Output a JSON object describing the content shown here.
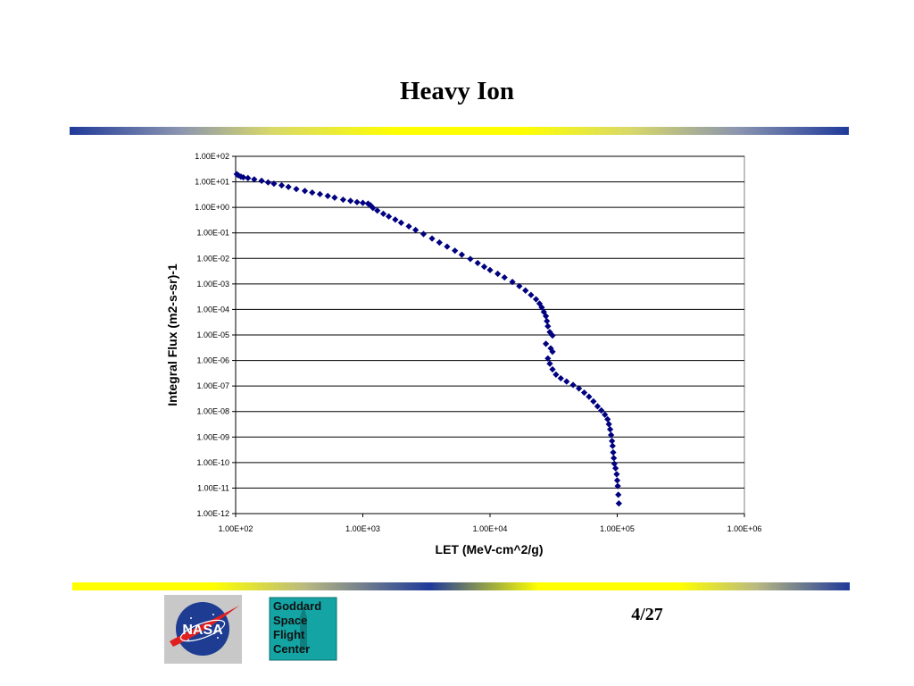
{
  "slide": {
    "title": "Heavy Ion",
    "page_number": "4/27"
  },
  "logos": {
    "nasa_text": "NASA",
    "gsfc_lines": [
      "Goddard",
      "Space",
      "Flight",
      "Center"
    ]
  },
  "colors": {
    "series": "#000080",
    "bar_blue": "#1f3a9a",
    "bar_yellow": "#ffff00",
    "gsfc_bg": "#14a4a4",
    "nasa_blue": "#1d3c92",
    "nasa_red": "#e02020"
  },
  "chart_data": {
    "type": "scatter",
    "title": "",
    "xlabel": "LET (MeV-cm^2/g)",
    "ylabel": "Integral Flux (m2-s-sr)-1",
    "x_scale": "log",
    "y_scale": "log",
    "xlim": [
      100,
      1000000
    ],
    "ylim": [
      1e-12,
      100
    ],
    "grid": "horizontal",
    "legend": "none",
    "marker": "diamond",
    "x_ticks": [
      "1.00E+02",
      "1.00E+03",
      "1.00E+04",
      "1.00E+05",
      "1.00E+06"
    ],
    "y_ticks": [
      "1.00E+02",
      "1.00E+01",
      "1.00E+00",
      "1.00E-01",
      "1.00E-02",
      "1.00E-03",
      "1.00E-04",
      "1.00E-05",
      "1.00E-06",
      "1.00E-07",
      "1.00E-08",
      "1.00E-09",
      "1.00E-10",
      "1.00E-11",
      "1.00E-12"
    ],
    "series": [
      {
        "points": [
          [
            102,
            20
          ],
          [
            105,
            18
          ],
          [
            110,
            16
          ],
          [
            115,
            15
          ],
          [
            125,
            14
          ],
          [
            140,
            12.5
          ],
          [
            160,
            11
          ],
          [
            180,
            9.5
          ],
          [
            200,
            8.5
          ],
          [
            230,
            7.3
          ],
          [
            260,
            6.3
          ],
          [
            300,
            5.2
          ],
          [
            350,
            4.4
          ],
          [
            400,
            3.8
          ],
          [
            460,
            3.3
          ],
          [
            530,
            2.8
          ],
          [
            600,
            2.4
          ],
          [
            700,
            2.0
          ],
          [
            800,
            1.8
          ],
          [
            900,
            1.6
          ],
          [
            1000,
            1.5
          ],
          [
            1100,
            1.4
          ],
          [
            1150,
            1.2
          ],
          [
            1200,
            0.95
          ],
          [
            1300,
            0.75
          ],
          [
            1450,
            0.56
          ],
          [
            1600,
            0.44
          ],
          [
            1800,
            0.33
          ],
          [
            2000,
            0.25
          ],
          [
            2300,
            0.18
          ],
          [
            2600,
            0.13
          ],
          [
            3000,
            0.09
          ],
          [
            3500,
            0.06
          ],
          [
            4000,
            0.042
          ],
          [
            4600,
            0.029
          ],
          [
            5300,
            0.02
          ],
          [
            6000,
            0.014
          ],
          [
            7000,
            0.0095
          ],
          [
            8000,
            0.0066
          ],
          [
            9000,
            0.0047
          ],
          [
            10000,
            0.0035
          ],
          [
            11500,
            0.0025
          ],
          [
            13000,
            0.0018
          ],
          [
            15000,
            0.0012
          ],
          [
            17000,
            0.00082
          ],
          [
            19000,
            0.00055
          ],
          [
            21000,
            0.00037
          ],
          [
            23000,
            0.00025
          ],
          [
            24500,
            0.00017
          ],
          [
            25500,
            0.00012
          ],
          [
            26500,
            8e-05
          ],
          [
            27500,
            5.5e-05
          ],
          [
            28000,
            3.5e-05
          ],
          [
            28500,
            2.2e-05
          ],
          [
            27500,
            4.5e-06
          ],
          [
            28500,
            1.2e-06
          ],
          [
            29500,
            7.5e-07
          ],
          [
            31000,
            4.5e-07
          ],
          [
            30000,
            3e-06
          ],
          [
            31000,
            2.2e-06
          ],
          [
            29500,
            1.3e-05
          ],
          [
            31000,
            9.5e-06
          ],
          [
            33000,
            2.8e-07
          ],
          [
            36000,
            2e-07
          ],
          [
            40000,
            1.5e-07
          ],
          [
            45000,
            1.1e-07
          ],
          [
            50000,
            8e-08
          ],
          [
            55000,
            5.5e-08
          ],
          [
            60000,
            3.8e-08
          ],
          [
            65000,
            2.5e-08
          ],
          [
            70000,
            1.6e-08
          ],
          [
            75000,
            1.1e-08
          ],
          [
            80000,
            7.5e-09
          ],
          [
            84000,
            5e-09
          ],
          [
            86000,
            3.2e-09
          ],
          [
            88000,
            2e-09
          ],
          [
            89500,
            1.2e-09
          ],
          [
            91000,
            7e-10
          ],
          [
            92000,
            4.5e-10
          ],
          [
            93000,
            2.5e-10
          ],
          [
            94000,
            1.5e-10
          ],
          [
            95000,
            9e-11
          ],
          [
            97000,
            6e-11
          ],
          [
            99000,
            3.5e-11
          ],
          [
            100000,
            2e-11
          ],
          [
            101000,
            1.2e-11
          ],
          [
            102000,
            5.5e-12
          ],
          [
            103000,
            2.5e-12
          ]
        ]
      }
    ]
  }
}
